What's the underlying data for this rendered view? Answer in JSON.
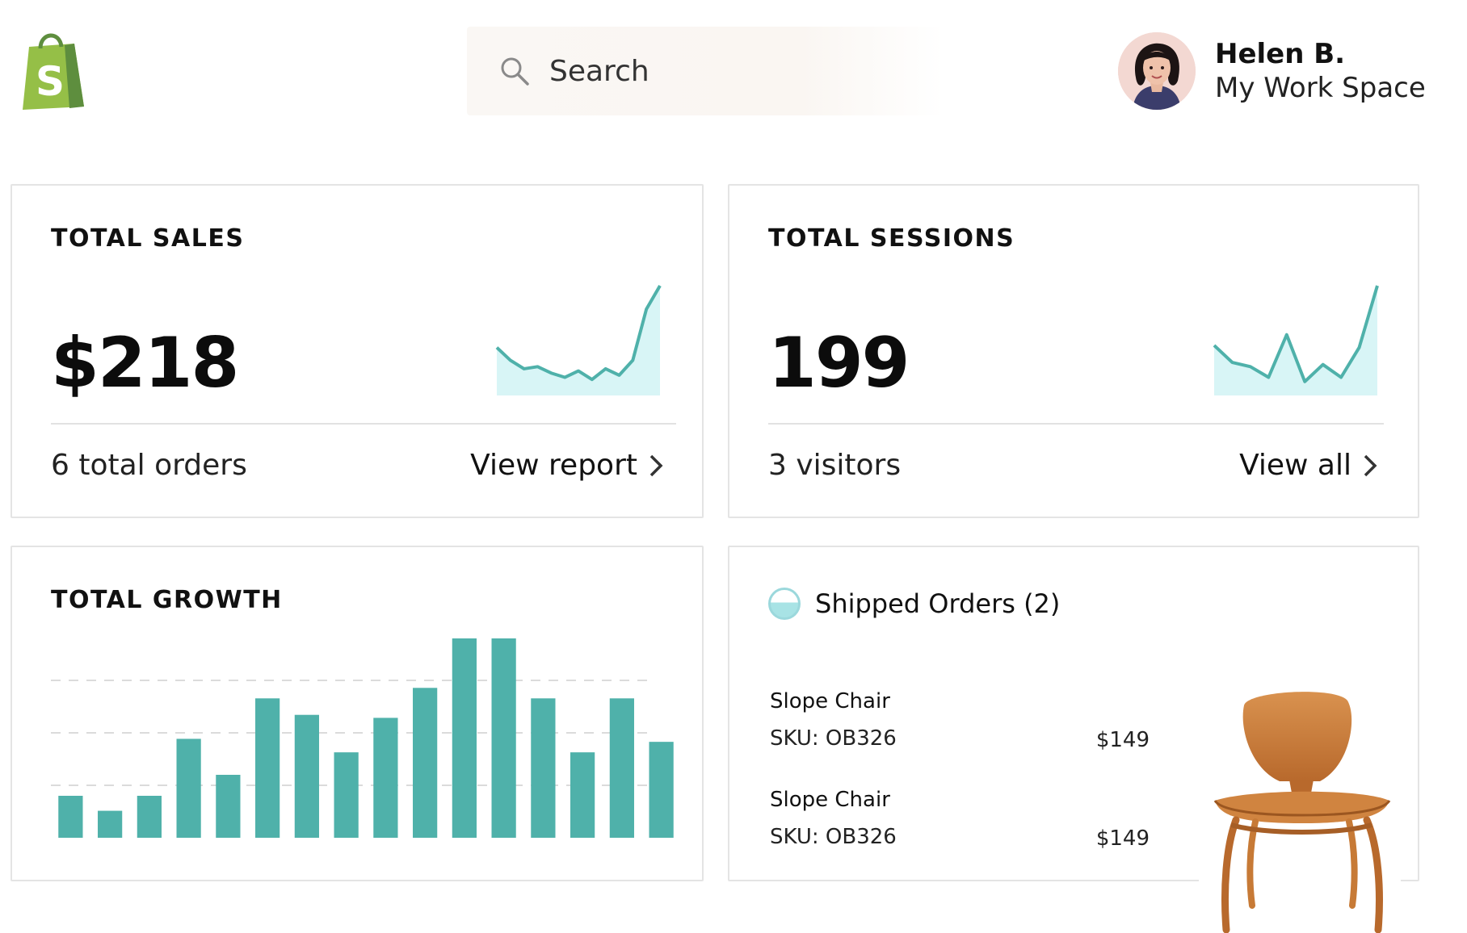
{
  "header": {
    "search_placeholder": "Search",
    "user_name": "Helen B.",
    "workspace": "My Work Space"
  },
  "sales": {
    "title": "TOTAL SALES",
    "value": "$218",
    "subtitle": "6 total orders",
    "link": "View report"
  },
  "sessions": {
    "title": "TOTAL SESSIONS",
    "value": "199",
    "subtitle": "3 visitors",
    "link": "View all"
  },
  "growth": {
    "title": "TOTAL GROWTH"
  },
  "shipped": {
    "title": "Shipped Orders (2)",
    "orders": [
      {
        "name": "Slope Chair",
        "sku": "SKU: OB326",
        "price": "$149"
      },
      {
        "name": "Slope Chair",
        "sku": "SKU: OB326",
        "price": "$149"
      }
    ]
  },
  "colors": {
    "accent": "#4fb1aa",
    "brand": "#95bf47",
    "sparkline_fill": "#d8f5f6"
  },
  "chart_data": [
    {
      "type": "line",
      "name_hint": "total-sales-sparkline",
      "values": [
        42,
        30,
        22,
        24,
        18,
        14,
        20,
        12,
        22,
        16,
        30,
        78,
        100
      ]
    },
    {
      "type": "line",
      "name_hint": "total-sessions-sparkline",
      "values": [
        44,
        28,
        24,
        14,
        54,
        10,
        26,
        14,
        42,
        100
      ]
    },
    {
      "type": "bar",
      "name_hint": "total-growth-bars",
      "values": [
        28,
        18,
        28,
        66,
        42,
        93,
        82,
        57,
        80,
        100,
        133,
        133,
        93,
        57,
        93,
        64
      ],
      "ylim": [
        0,
        140
      ]
    }
  ]
}
